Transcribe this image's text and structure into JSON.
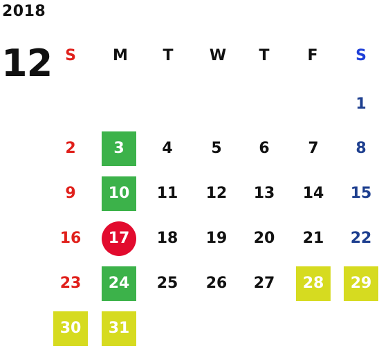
{
  "calendar": {
    "year": "2018",
    "month": "12",
    "weekdays": [
      "S",
      "M",
      "T",
      "W",
      "T",
      "F",
      "S"
    ],
    "weekday_colors": [
      "#e0201b",
      "#111111",
      "#111111",
      "#111111",
      "#111111",
      "#111111",
      "#1e3fd8"
    ],
    "day_colors": {
      "sunday": "#e0201b",
      "weekday": "#111111",
      "saturday": "#1e3f8f"
    },
    "highlight_colors": {
      "green": "#3cb24a",
      "red": "#e20b2e",
      "yellow": "#d6db20"
    },
    "weeks": [
      [
        {
          "day": ""
        },
        {
          "day": ""
        },
        {
          "day": ""
        },
        {
          "day": ""
        },
        {
          "day": ""
        },
        {
          "day": ""
        },
        {
          "day": "1"
        }
      ],
      [
        {
          "day": "2"
        },
        {
          "day": "3",
          "highlight": "green"
        },
        {
          "day": "4"
        },
        {
          "day": "5"
        },
        {
          "day": "6"
        },
        {
          "day": "7"
        },
        {
          "day": "8"
        }
      ],
      [
        {
          "day": "9"
        },
        {
          "day": "10",
          "highlight": "green"
        },
        {
          "day": "11"
        },
        {
          "day": "12"
        },
        {
          "day": "13"
        },
        {
          "day": "14"
        },
        {
          "day": "15"
        }
      ],
      [
        {
          "day": "16"
        },
        {
          "day": "17",
          "highlight": "red"
        },
        {
          "day": "18"
        },
        {
          "day": "19"
        },
        {
          "day": "20"
        },
        {
          "day": "21"
        },
        {
          "day": "22"
        }
      ],
      [
        {
          "day": "23"
        },
        {
          "day": "24",
          "highlight": "green"
        },
        {
          "day": "25"
        },
        {
          "day": "26"
        },
        {
          "day": "27"
        },
        {
          "day": "28",
          "highlight": "yellow"
        },
        {
          "day": "29",
          "highlight": "yellow"
        }
      ],
      [
        {
          "day": "30",
          "highlight": "yellow"
        },
        {
          "day": "31",
          "highlight": "yellow"
        },
        {
          "day": ""
        },
        {
          "day": ""
        },
        {
          "day": ""
        },
        {
          "day": ""
        },
        {
          "day": ""
        }
      ]
    ]
  }
}
